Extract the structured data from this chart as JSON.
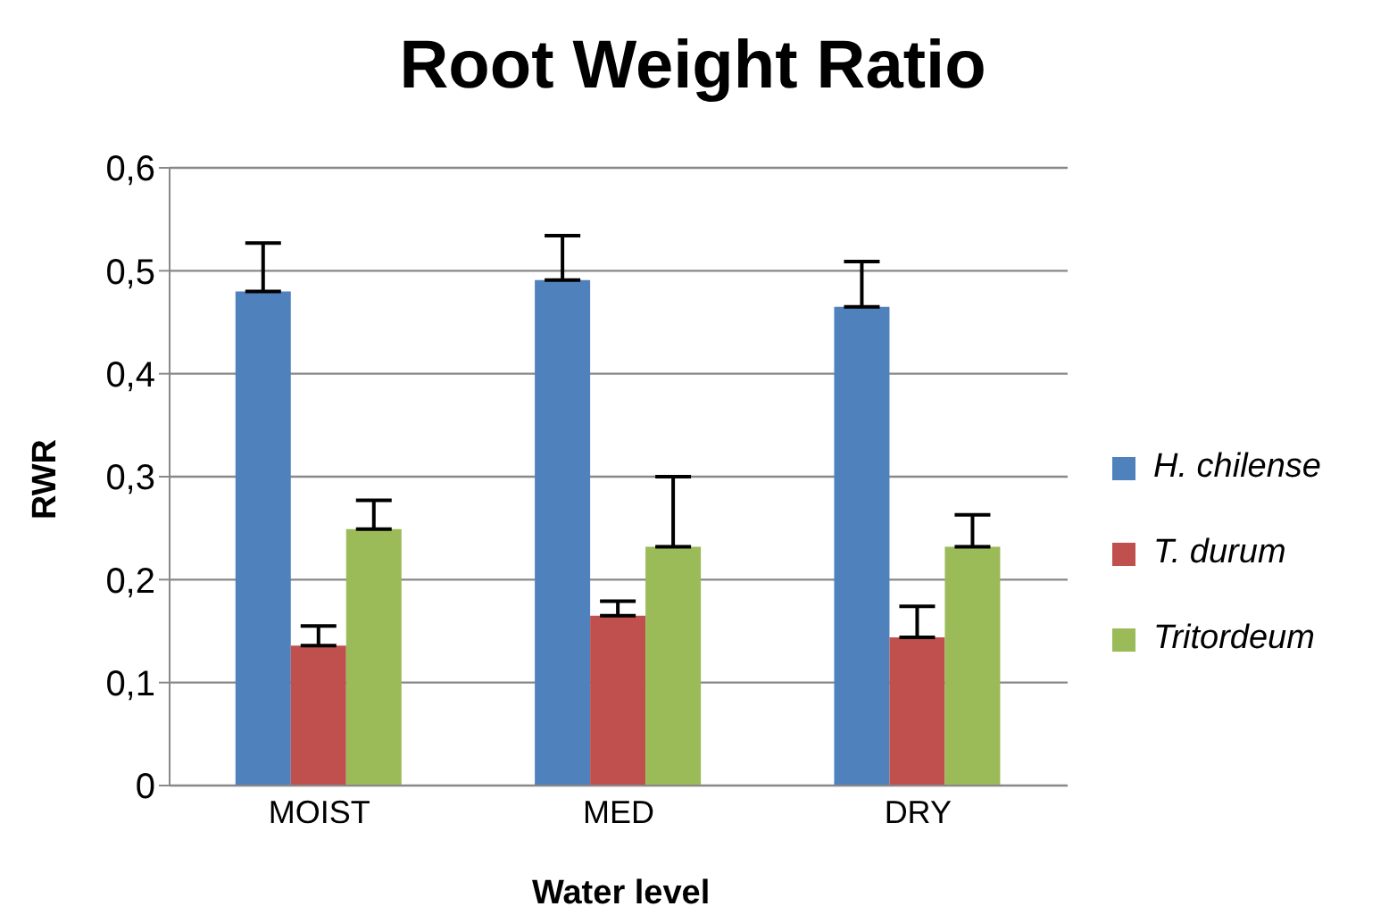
{
  "chart_data": {
    "type": "bar",
    "title": "Root Weight Ratio",
    "xlabel": "Water level",
    "ylabel": "RWR",
    "categories": [
      "MOIST",
      "MED",
      "DRY"
    ],
    "series": [
      {
        "name": "H. chilense",
        "color": "#4f81bd",
        "values": [
          0.48,
          0.491,
          0.465
        ],
        "errors": [
          [
            0.48,
            0.527
          ],
          [
            0.491,
            0.534
          ],
          [
            0.465,
            0.509
          ]
        ]
      },
      {
        "name": "T. durum",
        "color": "#c0504d",
        "values": [
          0.136,
          0.165,
          0.144
        ],
        "errors": [
          [
            0.136,
            0.155
          ],
          [
            0.165,
            0.179
          ],
          [
            0.144,
            0.174
          ]
        ]
      },
      {
        "name": "Tritordeum",
        "color": "#9bbb59",
        "values": [
          0.249,
          0.232,
          0.232
        ],
        "errors": [
          [
            0.249,
            0.277
          ],
          [
            0.232,
            0.3
          ],
          [
            0.232,
            0.263
          ]
        ]
      }
    ],
    "ylim": [
      0,
      0.6
    ],
    "yticks": [
      0,
      {
        "value": 0.1,
        "label": "0,1"
      },
      {
        "value": 0.2,
        "label": "0,2"
      },
      {
        "value": 0.3,
        "label": "0,3"
      },
      {
        "value": 0.4,
        "label": "0,4"
      },
      {
        "value": 0.5,
        "label": "0,5"
      },
      {
        "value": 0.6,
        "label": "0,6"
      }
    ],
    "grid": "y",
    "legend": "right"
  }
}
